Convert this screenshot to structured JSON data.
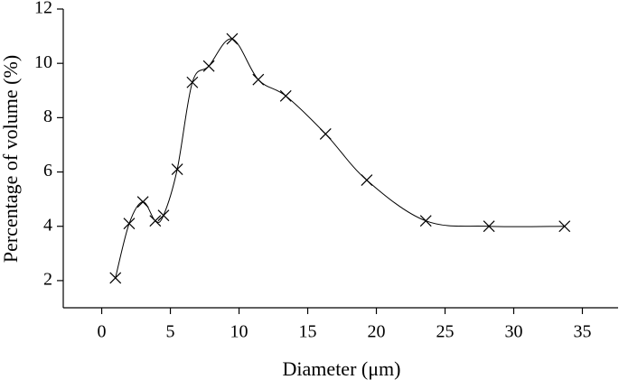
{
  "chart_data": {
    "type": "line",
    "x_label": "Diameter (μm)",
    "y_label": "Percentage of volume (%)",
    "series": [
      {
        "color": "#000000",
        "x": [
          1.0,
          2.0,
          3.0,
          3.9,
          4.5,
          5.5,
          6.6,
          7.8,
          9.5,
          11.4,
          13.4,
          16.3,
          19.3,
          23.6,
          28.2,
          33.7
        ],
        "values": [
          2.1,
          4.1,
          4.9,
          4.2,
          4.4,
          6.1,
          9.3,
          9.9,
          10.9,
          9.4,
          8.8,
          7.4,
          5.7,
          4.2,
          4.0,
          4.0
        ]
      }
    ],
    "xlim": [
      -2.8,
      37.6
    ],
    "xticks": [
      0,
      5,
      10,
      15,
      20,
      25,
      30,
      35
    ],
    "ylim": [
      1,
      12
    ],
    "yticks": [
      2,
      4,
      6,
      8,
      10,
      12
    ]
  }
}
